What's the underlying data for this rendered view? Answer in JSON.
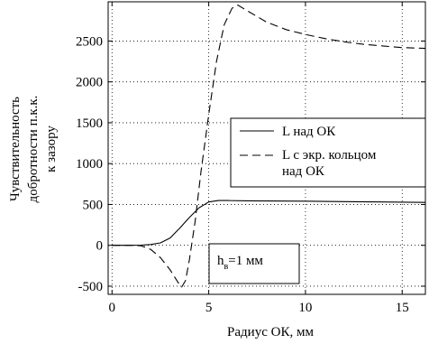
{
  "chart_data": {
    "type": "line",
    "title": "",
    "xlabel": "Радиус ОК, мм",
    "ylabel_lines": [
      "Чувствительность",
      "добротности п.к.к.",
      "к зазору"
    ],
    "xlim": [
      -0.2,
      16.2
    ],
    "ylim": [
      -600,
      2980
    ],
    "xticks": [
      0,
      5,
      10,
      15
    ],
    "yticks": [
      -500,
      0,
      500,
      1000,
      1500,
      2000,
      2500
    ],
    "grid": true,
    "legend_position": "center-right",
    "series": [
      {
        "name": "L над ОК",
        "style": "solid",
        "x": [
          0,
          1,
          1.5,
          2,
          2.5,
          3,
          3.5,
          4,
          4.5,
          5,
          5.5,
          6,
          7,
          8,
          10,
          12,
          14,
          16.2
        ],
        "y": [
          0,
          0,
          2,
          10,
          30,
          90,
          210,
          340,
          460,
          530,
          548,
          548,
          545,
          543,
          540,
          535,
          530,
          525
        ]
      },
      {
        "name": "L с экр. кольцом над ОК",
        "style": "dashed",
        "x": [
          0,
          1,
          1.5,
          2,
          2.5,
          3,
          3.4,
          3.6,
          3.8,
          4.0,
          4.3,
          4.6,
          5.0,
          5.4,
          5.8,
          6.2,
          6.5,
          7,
          8,
          9,
          10,
          11,
          12,
          13,
          14,
          15,
          16.2
        ],
        "y": [
          0,
          0,
          -5,
          -50,
          -150,
          -300,
          -450,
          -510,
          -430,
          -180,
          300,
          900,
          1600,
          2250,
          2700,
          2900,
          2940,
          2870,
          2730,
          2640,
          2580,
          2530,
          2490,
          2460,
          2440,
          2420,
          2410
        ]
      }
    ],
    "annotation": {
      "main": "h",
      "sub": "в",
      "rest": "=1 мм"
    }
  }
}
